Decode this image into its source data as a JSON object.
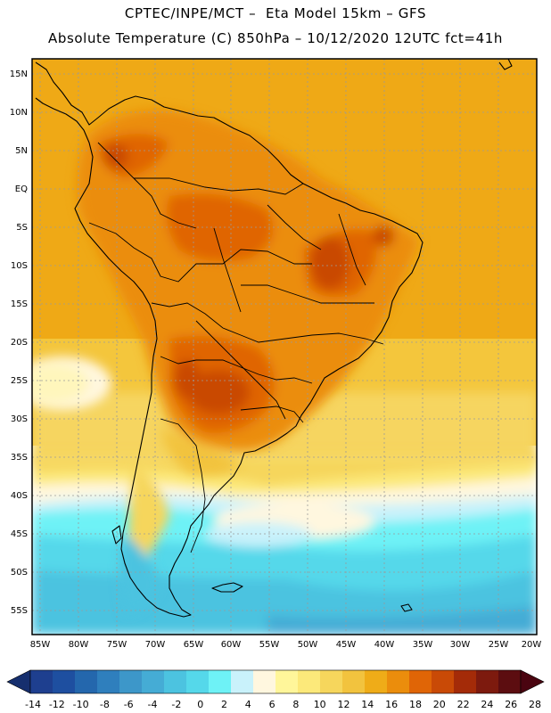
{
  "title_line1": "CPTEC/INPE/MCT –  Eta Model 15km – GFS",
  "title_line2": "Absolute Temperature (C) 850hPa – 10/12/2020 12UTC fct=41h",
  "lat_labels": [
    "15N",
    "10N",
    "5N",
    "EQ",
    "5S",
    "10S",
    "15S",
    "20S",
    "25S",
    "30S",
    "35S",
    "40S",
    "45S",
    "50S",
    "55S"
  ],
  "lon_labels": [
    "85W",
    "80W",
    "75W",
    "70W",
    "65W",
    "60W",
    "55W",
    "50W",
    "45W",
    "40W",
    "35W",
    "30W",
    "25W",
    "20W"
  ],
  "colorbar": {
    "labels": [
      "-14",
      "-12",
      "-10",
      "-8",
      "-6",
      "-4",
      "-2",
      "0",
      "2",
      "4",
      "6",
      "8",
      "10",
      "12",
      "14",
      "16",
      "18",
      "20",
      "22",
      "24",
      "26",
      "28"
    ],
    "colors": [
      "#1e3f8f",
      "#1e4fa0",
      "#2467ad",
      "#2f7fbd",
      "#3d97c9",
      "#45acd5",
      "#4cc3e0",
      "#55d8ea",
      "#6ef2f6",
      "#c9f2fb",
      "#fff7df",
      "#fff69a",
      "#fce97a",
      "#f6d65c",
      "#f2c33e",
      "#efac18",
      "#eb8d0c",
      "#e06506",
      "#c94a06",
      "#a42b08",
      "#7d1a0e",
      "#5c0d10"
    ],
    "left_cap_color": "#162f6e",
    "right_cap_color": "#4a0410"
  }
}
